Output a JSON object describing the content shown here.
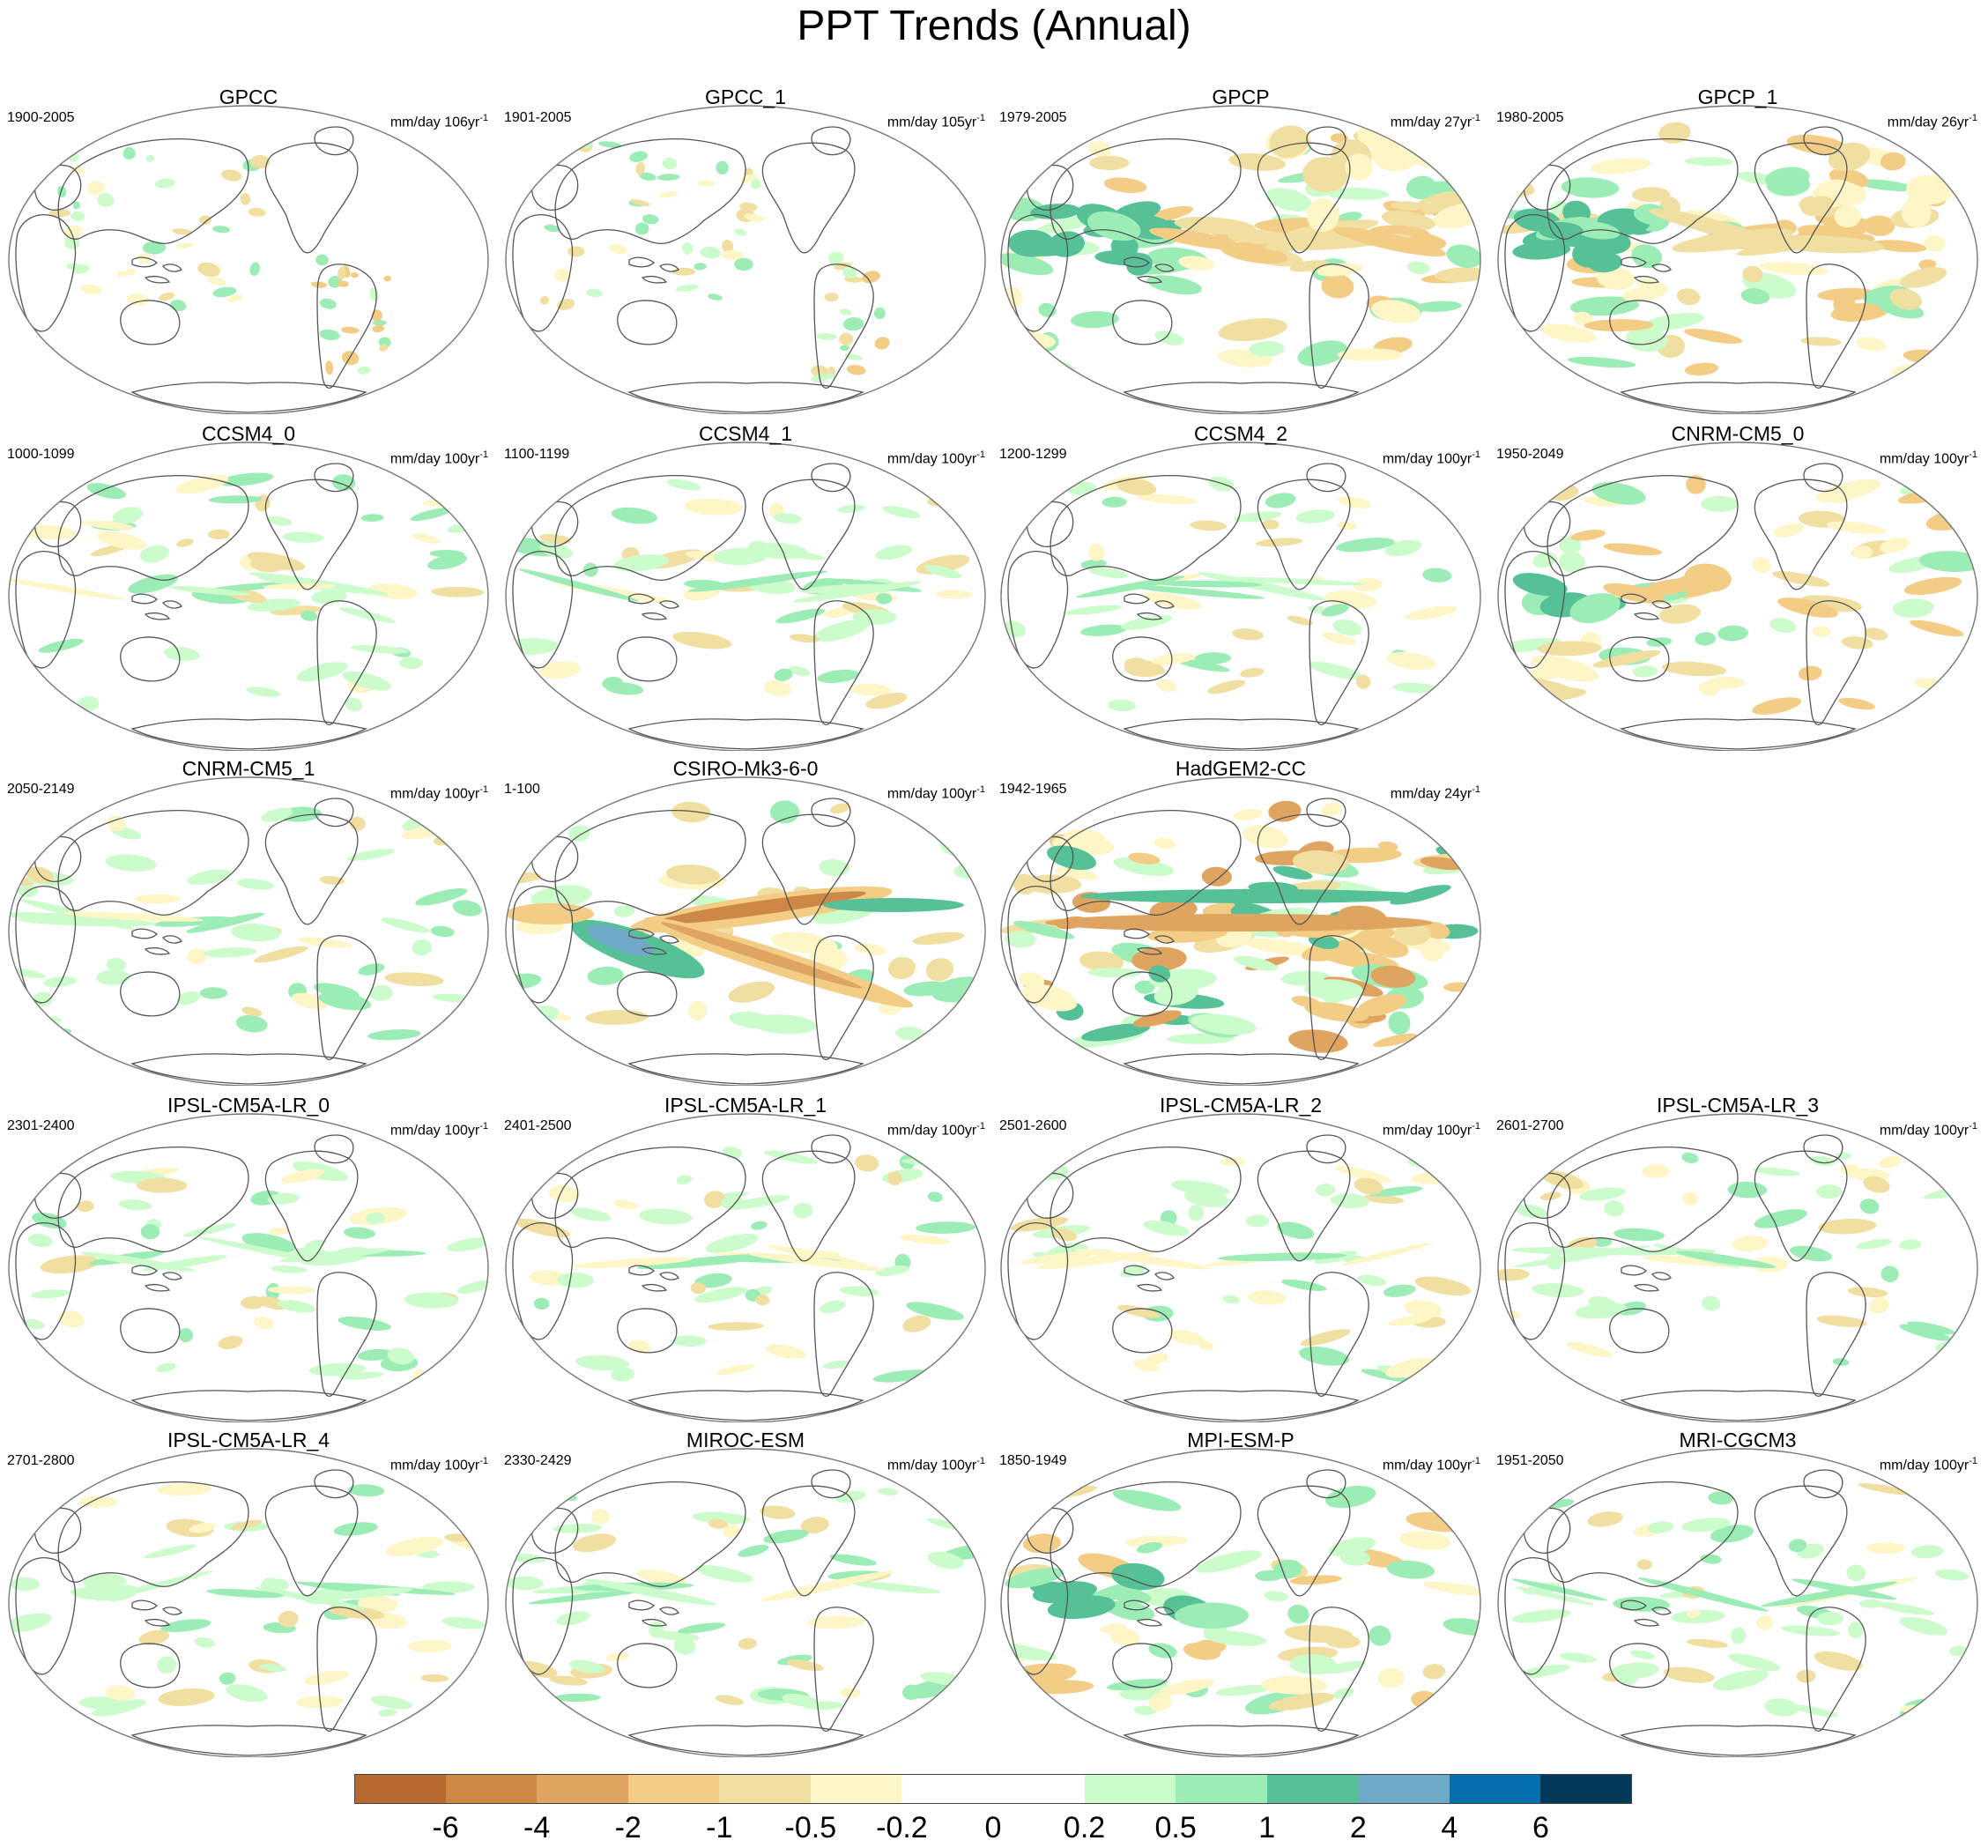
{
  "title": "PPT Trends (Annual)",
  "panels": [
    {
      "name": "GPCC",
      "period": "1900-2005",
      "units": "mm/day 106yr",
      "units_exp": "-1",
      "pattern": "obs_sparse",
      "row": 0,
      "col": 0
    },
    {
      "name": "GPCC_1",
      "period": "1901-2005",
      "units": "mm/day 105yr",
      "units_exp": "-1",
      "pattern": "obs_sparse",
      "row": 0,
      "col": 1
    },
    {
      "name": "GPCP",
      "period": "1979-2005",
      "units": "mm/day 27yr",
      "units_exp": "-1",
      "pattern": "obs_strong",
      "row": 0,
      "col": 2
    },
    {
      "name": "GPCP_1",
      "period": "1980-2005",
      "units": "mm/day 26yr",
      "units_exp": "-1",
      "pattern": "obs_strong",
      "row": 0,
      "col": 3
    },
    {
      "name": "CCSM4_0",
      "period": "1000-1099",
      "units": "mm/day 100yr",
      "units_exp": "-1",
      "pattern": "weak",
      "row": 1,
      "col": 0
    },
    {
      "name": "CCSM4_1",
      "period": "1100-1199",
      "units": "mm/day 100yr",
      "units_exp": "-1",
      "pattern": "weak",
      "row": 1,
      "col": 1
    },
    {
      "name": "CCSM4_2",
      "period": "1200-1299",
      "units": "mm/day 100yr",
      "units_exp": "-1",
      "pattern": "weak",
      "row": 1,
      "col": 2
    },
    {
      "name": "CNRM-CM5_0",
      "period": "1950-2049",
      "units": "mm/day 100yr",
      "units_exp": "-1",
      "pattern": "moderate",
      "row": 1,
      "col": 3
    },
    {
      "name": "CNRM-CM5_1",
      "period": "2050-2149",
      "units": "mm/day 100yr",
      "units_exp": "-1",
      "pattern": "weak",
      "row": 2,
      "col": 0
    },
    {
      "name": "CSIRO-Mk3-6-0",
      "period": "1-100",
      "units": "mm/day 100yr",
      "units_exp": "-1",
      "pattern": "strong_enso",
      "row": 2,
      "col": 1
    },
    {
      "name": "HadGEM2-CC",
      "period": "1942-1965",
      "units": "mm/day 24yr",
      "units_exp": "-1",
      "pattern": "strong_noisy",
      "row": 2,
      "col": 2
    },
    {
      "name": "IPSL-CM5A-LR_0",
      "period": "2301-2400",
      "units": "mm/day 100yr",
      "units_exp": "-1",
      "pattern": "weak",
      "row": 3,
      "col": 0
    },
    {
      "name": "IPSL-CM5A-LR_1",
      "period": "2401-2500",
      "units": "mm/day 100yr",
      "units_exp": "-1",
      "pattern": "weak",
      "row": 3,
      "col": 1
    },
    {
      "name": "IPSL-CM5A-LR_2",
      "period": "2501-2600",
      "units": "mm/day 100yr",
      "units_exp": "-1",
      "pattern": "weak",
      "row": 3,
      "col": 2
    },
    {
      "name": "IPSL-CM5A-LR_3",
      "period": "2601-2700",
      "units": "mm/day 100yr",
      "units_exp": "-1",
      "pattern": "weak",
      "row": 3,
      "col": 3
    },
    {
      "name": "IPSL-CM5A-LR_4",
      "period": "2701-2800",
      "units": "mm/day 100yr",
      "units_exp": "-1",
      "pattern": "weak",
      "row": 4,
      "col": 0
    },
    {
      "name": "MIROC-ESM",
      "period": "2330-2429",
      "units": "mm/day 100yr",
      "units_exp": "-1",
      "pattern": "weak",
      "row": 4,
      "col": 1
    },
    {
      "name": "MPI-ESM-P",
      "period": "1850-1949",
      "units": "mm/day 100yr",
      "units_exp": "-1",
      "pattern": "moderate",
      "row": 4,
      "col": 2
    },
    {
      "name": "MRI-CGCM3",
      "period": "1951-2050",
      "units": "mm/day 100yr",
      "units_exp": "-1",
      "pattern": "weak",
      "row": 4,
      "col": 3
    }
  ],
  "legend": {
    "colors": [
      "#b8692e",
      "#cc8844",
      "#dea460",
      "#f3cc85",
      "#f0dfa0",
      "#fef6c6",
      "#ffffff",
      "#ffffff",
      "#ccfbcc",
      "#9cecb6",
      "#56c196",
      "#6fa9c8",
      "#0570b0",
      "#023858"
    ],
    "labels": [
      "-6",
      "-4",
      "-2",
      "-1",
      "-0.5",
      "-0.2",
      "0",
      "0.2",
      "0.5",
      "1",
      "2",
      "4",
      "6"
    ]
  }
}
